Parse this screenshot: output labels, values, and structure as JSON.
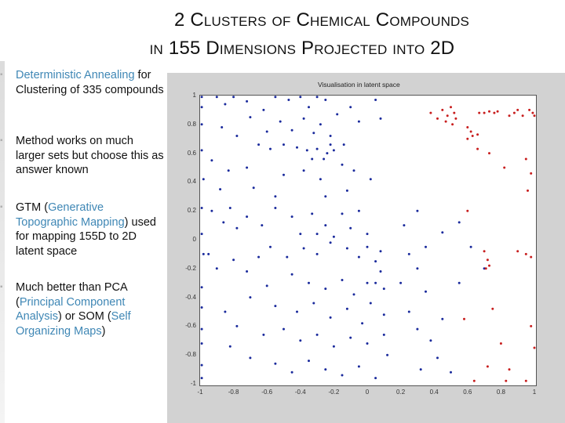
{
  "slide": {
    "title_line1": "2 Clusters of Chemical Compounds",
    "title_line2": "in 155 Dimensions Projected into 2D"
  },
  "bullets": [
    {
      "hl_a": "Deterministic Annealing",
      "text_a": " for Clustering of 335 compounds"
    },
    {
      "text_a": "Method works on much larger sets but choose this as answer known"
    },
    {
      "text_a": "GTM (",
      "hl_a": "Generative Topographic Mapping",
      "text_b": ") used for mapping 155D to 2D latent space"
    },
    {
      "text_a": "Much better than PCA (",
      "hl_a": "Principal Component Analysis",
      "text_b": ") or SOM (",
      "hl_b": "Self Organizing Maps",
      "text_c": ")"
    }
  ],
  "chart_data": {
    "type": "scatter",
    "title": "Visualisation in latent space",
    "xlim": [
      -1,
      1
    ],
    "ylim": [
      -1,
      1
    ],
    "x_ticks": [
      "-1",
      "-0.8",
      "-0.6",
      "-0.4",
      "-0.2",
      "0",
      "0.2",
      "0.4",
      "0.6",
      "0.8",
      "1"
    ],
    "y_ticks": [
      "1",
      "0.8",
      "0.6",
      "0.4",
      "0.2",
      "0",
      "-0.2",
      "-0.4",
      "-0.6",
      "-0.8",
      "-1"
    ],
    "grid": false,
    "series": [
      {
        "color": "#1a2a9c",
        "points": [
          [
            -0.99,
            0.99
          ],
          [
            -0.99,
            0.92
          ],
          [
            -0.99,
            0.8
          ],
          [
            -0.99,
            0.62
          ],
          [
            -0.98,
            0.42
          ],
          [
            -0.99,
            0.22
          ],
          [
            -0.99,
            0.04
          ],
          [
            -0.98,
            -0.1
          ],
          [
            -0.99,
            -0.33
          ],
          [
            -0.99,
            -0.47
          ],
          [
            -0.99,
            -0.62
          ],
          [
            -0.99,
            -0.72
          ],
          [
            -0.99,
            -0.87
          ],
          [
            -0.99,
            -0.96
          ],
          [
            -0.9,
            0.99
          ],
          [
            -0.85,
            0.94
          ],
          [
            -0.8,
            0.99
          ],
          [
            -0.72,
            0.96
          ],
          [
            -0.62,
            0.9
          ],
          [
            -0.55,
            0.99
          ],
          [
            -0.47,
            0.97
          ],
          [
            -0.4,
            0.99
          ],
          [
            -0.35,
            0.92
          ],
          [
            -0.3,
            0.99
          ],
          [
            -0.25,
            0.97
          ],
          [
            -0.87,
            0.78
          ],
          [
            -0.78,
            0.72
          ],
          [
            -0.7,
            0.85
          ],
          [
            -0.6,
            0.75
          ],
          [
            -0.52,
            0.82
          ],
          [
            -0.45,
            0.76
          ],
          [
            -0.38,
            0.84
          ],
          [
            -0.32,
            0.74
          ],
          [
            -0.28,
            0.8
          ],
          [
            -0.22,
            0.72
          ],
          [
            -0.18,
            0.87
          ],
          [
            -0.1,
            0.92
          ],
          [
            -0.05,
            0.82
          ],
          [
            0.05,
            0.97
          ],
          [
            0.08,
            0.84
          ],
          [
            -0.65,
            0.66
          ],
          [
            -0.58,
            0.63
          ],
          [
            -0.5,
            0.66
          ],
          [
            -0.42,
            0.64
          ],
          [
            -0.36,
            0.62
          ],
          [
            -0.3,
            0.63
          ],
          [
            -0.24,
            0.6
          ],
          [
            -0.22,
            0.66
          ],
          [
            -0.2,
            0.62
          ],
          [
            -0.14,
            0.66
          ],
          [
            -0.26,
            0.56
          ],
          [
            -0.33,
            0.56
          ],
          [
            -0.93,
            0.55
          ],
          [
            -0.83,
            0.48
          ],
          [
            -0.72,
            0.5
          ],
          [
            -0.68,
            0.36
          ],
          [
            -0.5,
            0.45
          ],
          [
            -0.38,
            0.48
          ],
          [
            -0.28,
            0.42
          ],
          [
            -0.15,
            0.52
          ],
          [
            -0.08,
            0.48
          ],
          [
            0.02,
            0.42
          ],
          [
            -0.12,
            0.34
          ],
          [
            -0.25,
            0.3
          ],
          [
            -0.55,
            0.3
          ],
          [
            -0.88,
            0.35
          ],
          [
            -0.82,
            0.22
          ],
          [
            -0.93,
            0.2
          ],
          [
            -0.86,
            0.12
          ],
          [
            -0.78,
            0.08
          ],
          [
            -0.72,
            0.16
          ],
          [
            -0.63,
            0.1
          ],
          [
            -0.55,
            0.22
          ],
          [
            -0.45,
            0.16
          ],
          [
            -0.4,
            0.04
          ],
          [
            -0.33,
            0.18
          ],
          [
            -0.3,
            0.04
          ],
          [
            -0.25,
            0.1
          ],
          [
            -0.2,
            0.02
          ],
          [
            -0.15,
            0.18
          ],
          [
            -0.1,
            0.08
          ],
          [
            -0.05,
            0.2
          ],
          [
            0.0,
            0.04
          ],
          [
            -0.58,
            -0.05
          ],
          [
            -0.65,
            -0.12
          ],
          [
            -0.72,
            -0.22
          ],
          [
            -0.8,
            -0.14
          ],
          [
            -0.9,
            -0.2
          ],
          [
            -0.95,
            -0.1
          ],
          [
            -0.48,
            -0.12
          ],
          [
            -0.38,
            -0.06
          ],
          [
            -0.3,
            -0.1
          ],
          [
            -0.22,
            -0.02
          ],
          [
            -0.12,
            -0.06
          ],
          [
            -0.05,
            -0.12
          ],
          [
            0.0,
            -0.05
          ],
          [
            0.05,
            -0.15
          ],
          [
            0.08,
            -0.08
          ],
          [
            -0.6,
            -0.32
          ],
          [
            -0.45,
            -0.24
          ],
          [
            -0.35,
            -0.3
          ],
          [
            -0.25,
            -0.34
          ],
          [
            -0.15,
            -0.28
          ],
          [
            -0.08,
            -0.38
          ],
          [
            0.0,
            -0.3
          ],
          [
            0.05,
            -0.3
          ],
          [
            0.1,
            -0.34
          ],
          [
            0.08,
            -0.22
          ],
          [
            -0.7,
            -0.4
          ],
          [
            -0.55,
            -0.46
          ],
          [
            -0.42,
            -0.5
          ],
          [
            -0.32,
            -0.44
          ],
          [
            -0.22,
            -0.54
          ],
          [
            -0.12,
            -0.48
          ],
          [
            -0.03,
            -0.58
          ],
          [
            0.02,
            -0.44
          ],
          [
            0.1,
            -0.52
          ],
          [
            -0.85,
            -0.5
          ],
          [
            -0.78,
            -0.6
          ],
          [
            -0.62,
            -0.66
          ],
          [
            -0.5,
            -0.62
          ],
          [
            -0.4,
            -0.7
          ],
          [
            -0.3,
            -0.66
          ],
          [
            -0.2,
            -0.74
          ],
          [
            -0.1,
            -0.68
          ],
          [
            0.0,
            -0.72
          ],
          [
            0.1,
            -0.66
          ],
          [
            -0.82,
            -0.74
          ],
          [
            -0.7,
            -0.82
          ],
          [
            -0.55,
            -0.86
          ],
          [
            -0.45,
            -0.92
          ],
          [
            -0.35,
            -0.84
          ],
          [
            -0.25,
            -0.9
          ],
          [
            -0.15,
            -0.94
          ],
          [
            -0.05,
            -0.88
          ],
          [
            0.05,
            -0.96
          ],
          [
            0.12,
            -0.8
          ],
          [
            0.2,
            -0.3
          ],
          [
            0.25,
            -0.1
          ],
          [
            0.3,
            -0.2
          ],
          [
            0.35,
            -0.36
          ],
          [
            0.25,
            -0.5
          ],
          [
            0.3,
            -0.62
          ],
          [
            0.38,
            -0.7
          ],
          [
            0.45,
            -0.55
          ],
          [
            0.42,
            -0.82
          ],
          [
            0.32,
            -0.9
          ],
          [
            0.5,
            -0.92
          ],
          [
            0.22,
            0.1
          ],
          [
            0.3,
            0.2
          ],
          [
            0.45,
            0.05
          ],
          [
            0.55,
            0.12
          ],
          [
            0.35,
            -0.05
          ],
          [
            0.62,
            -0.05
          ],
          [
            0.7,
            -0.2
          ],
          [
            0.55,
            -0.3
          ]
        ]
      },
      {
        "color": "#c81e1e",
        "points": [
          [
            0.38,
            0.88
          ],
          [
            0.42,
            0.84
          ],
          [
            0.45,
            0.9
          ],
          [
            0.48,
            0.86
          ],
          [
            0.5,
            0.92
          ],
          [
            0.52,
            0.88
          ],
          [
            0.53,
            0.84
          ],
          [
            0.51,
            0.8
          ],
          [
            0.47,
            0.82
          ],
          [
            0.6,
            0.78
          ],
          [
            0.62,
            0.75
          ],
          [
            0.63,
            0.72
          ],
          [
            0.66,
            0.73
          ],
          [
            0.6,
            0.7
          ],
          [
            0.67,
            0.88
          ],
          [
            0.7,
            0.88
          ],
          [
            0.73,
            0.89
          ],
          [
            0.76,
            0.88
          ],
          [
            0.78,
            0.89
          ],
          [
            0.85,
            0.86
          ],
          [
            0.88,
            0.88
          ],
          [
            0.9,
            0.9
          ],
          [
            0.93,
            0.86
          ],
          [
            0.97,
            0.9
          ],
          [
            0.99,
            0.88
          ],
          [
            1.0,
            0.86
          ],
          [
            0.66,
            0.63
          ],
          [
            0.73,
            0.6
          ],
          [
            0.82,
            0.5
          ],
          [
            0.95,
            0.56
          ],
          [
            0.98,
            0.46
          ],
          [
            0.96,
            0.34
          ],
          [
            0.6,
            0.2
          ],
          [
            0.7,
            -0.08
          ],
          [
            0.72,
            -0.14
          ],
          [
            0.71,
            -0.2
          ],
          [
            0.73,
            -0.18
          ],
          [
            0.9,
            -0.08
          ],
          [
            0.95,
            -0.1
          ],
          [
            0.98,
            -0.12
          ],
          [
            0.58,
            -0.55
          ],
          [
            0.75,
            -0.48
          ],
          [
            0.8,
            -0.72
          ],
          [
            0.72,
            -0.88
          ],
          [
            0.85,
            -0.9
          ],
          [
            0.98,
            -0.6
          ],
          [
            1.0,
            -0.75
          ],
          [
            0.95,
            -0.98
          ],
          [
            0.83,
            -0.98
          ],
          [
            0.64,
            -0.98
          ]
        ]
      }
    ]
  }
}
